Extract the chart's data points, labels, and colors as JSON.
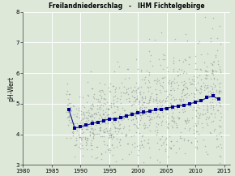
{
  "title": "Freilandniederschlag   -   IHM Fichtelgebirge",
  "ylabel": "pH-Wert",
  "xlim": [
    1980,
    2016
  ],
  "ylim": [
    3.0,
    8.0
  ],
  "yticks": [
    3,
    4,
    5,
    6,
    7,
    8
  ],
  "xticks": [
    1980,
    1985,
    1990,
    1995,
    2000,
    2005,
    2010,
    2015
  ],
  "background_color": "#dde8d9",
  "grid_color": "#ffffff",
  "scatter_color": "#888888",
  "line_color": "#00008b",
  "marker_color": "#00008b",
  "annual_means": [
    [
      1988,
      4.8
    ],
    [
      1989,
      4.2
    ],
    [
      1990,
      4.25
    ],
    [
      1991,
      4.3
    ],
    [
      1992,
      4.35
    ],
    [
      1993,
      4.4
    ],
    [
      1994,
      4.45
    ],
    [
      1995,
      4.5
    ],
    [
      1996,
      4.5
    ],
    [
      1997,
      4.55
    ],
    [
      1998,
      4.6
    ],
    [
      1999,
      4.65
    ],
    [
      2000,
      4.7
    ],
    [
      2001,
      4.72
    ],
    [
      2002,
      4.75
    ],
    [
      2003,
      4.8
    ],
    [
      2004,
      4.82
    ],
    [
      2005,
      4.85
    ],
    [
      2006,
      4.9
    ],
    [
      2007,
      4.92
    ],
    [
      2008,
      4.95
    ],
    [
      2009,
      5.0
    ],
    [
      2010,
      5.05
    ],
    [
      2011,
      5.1
    ],
    [
      2012,
      5.2
    ],
    [
      2013,
      5.25
    ],
    [
      2014,
      5.15
    ]
  ],
  "title_fontsize": 5.5,
  "ylabel_fontsize": 5.5,
  "tick_fontsize": 5.0
}
